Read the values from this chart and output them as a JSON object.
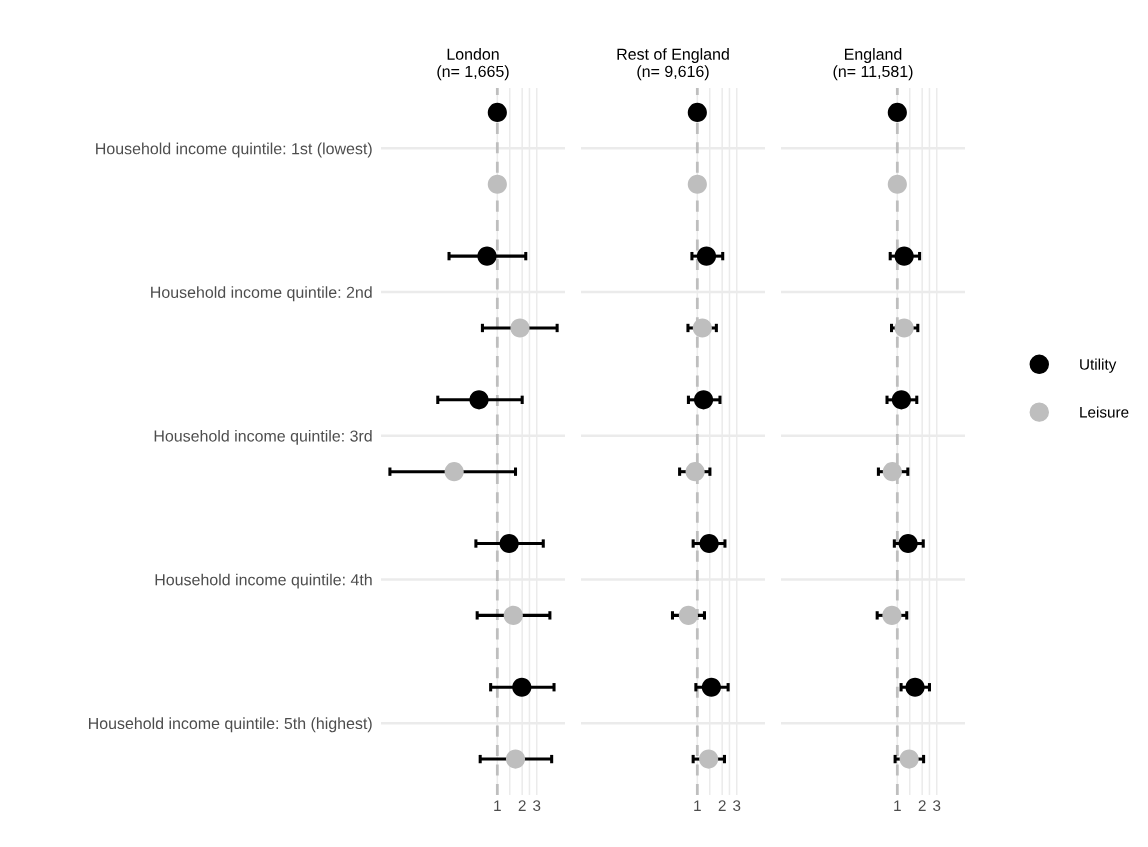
{
  "chart_data": [
    {
      "type": "scatter",
      "orientation": "horizontal",
      "title": "London\n(n= 1,665)",
      "categories": [
        "Household income quintile: 1st (lowest)",
        "Household income quintile: 2nd",
        "Household income quintile: 3rd",
        "Household income quintile: 4th",
        "Household income quintile: 5th (highest)"
      ],
      "xticks": [
        1,
        2,
        3
      ],
      "series": [
        {
          "name": "Utility",
          "color": "#000000",
          "values": [
            1,
            0.75,
            0.6,
            1.39,
            1.98
          ],
          "errors": [
            null,
            [
              0.26,
              2.21
            ],
            [
              0.19,
              2.0
            ],
            [
              0.55,
              3.6
            ],
            [
              0.83,
              4.86
            ]
          ]
        },
        {
          "name": "Leisure",
          "color": "#bebebe",
          "values": [
            1,
            1.88,
            0.3,
            1.56,
            1.66
          ],
          "errors": [
            null,
            [
              0.66,
              5.3
            ],
            [
              0.05,
              1.66
            ],
            [
              0.57,
              4.33
            ],
            [
              0.62,
              4.55
            ]
          ]
        }
      ],
      "log": "x",
      "xlim": [
        0.039,
        6.6
      ],
      "grid": true,
      "marker": "circle",
      "legend": "right",
      "ref_lines": [
        {
          "axis": "x",
          "value": 1,
          "color": "#bebebe",
          "line_style": "dashed"
        }
      ]
    },
    {
      "type": "scatter",
      "orientation": "horizontal",
      "title": "Rest of England\n(n= 9,616)",
      "categories": [
        null,
        null,
        null,
        null,
        null
      ],
      "xticks": [
        1,
        2,
        3
      ],
      "series": [
        {
          "color": "#000000",
          "values": [
            1,
            1.29,
            1.19,
            1.39,
            1.48
          ],
          "errors": [
            null,
            [
              0.86,
              2.03
            ],
            [
              0.78,
              1.88
            ],
            [
              0.89,
              2.16
            ],
            [
              0.96,
              2.36
            ]
          ]
        },
        {
          "color": "#bebebe",
          "values": [
            1,
            1.15,
            0.94,
            0.78,
            1.37
          ],
          "errors": [
            null,
            [
              0.77,
              1.7
            ],
            [
              0.61,
              1.42
            ],
            [
              0.5,
              1.22
            ],
            [
              0.89,
              2.13
            ]
          ]
        }
      ],
      "log": "x",
      "xlim": [
        0.039,
        6.6
      ],
      "grid": true,
      "marker": "circle",
      "tick_labels": "x",
      "ref_lines": [
        {
          "axis": "x",
          "value": 1,
          "color": "#bebebe",
          "line_style": "dashed"
        }
      ]
    },
    {
      "type": "scatter",
      "orientation": "horizontal",
      "title": "England\n(n= 11,581)",
      "categories": [
        null,
        null,
        null,
        null,
        null
      ],
      "xticks": [
        1,
        2,
        3
      ],
      "series": [
        {
          "color": "#000000",
          "values": [
            1,
            1.21,
            1.12,
            1.35,
            1.64
          ],
          "errors": [
            null,
            [
              0.82,
              1.86
            ],
            [
              0.75,
              1.72
            ],
            [
              0.92,
              2.06
            ],
            [
              1.11,
              2.45
            ]
          ]
        },
        {
          "color": "#bebebe",
          "values": [
            1,
            1.21,
            0.87,
            0.86,
            1.39
          ],
          "errors": [
            null,
            [
              0.85,
              1.77
            ],
            [
              0.59,
              1.34
            ],
            [
              0.57,
              1.3
            ],
            [
              0.94,
              2.08
            ]
          ]
        }
      ],
      "log": "x",
      "xlim": [
        0.039,
        6.6
      ],
      "grid": true,
      "marker": "circle",
      "tick_labels": "x",
      "ref_lines": [
        {
          "axis": "x",
          "value": 1,
          "color": "#bebebe",
          "line_style": "dashed"
        }
      ]
    }
  ]
}
